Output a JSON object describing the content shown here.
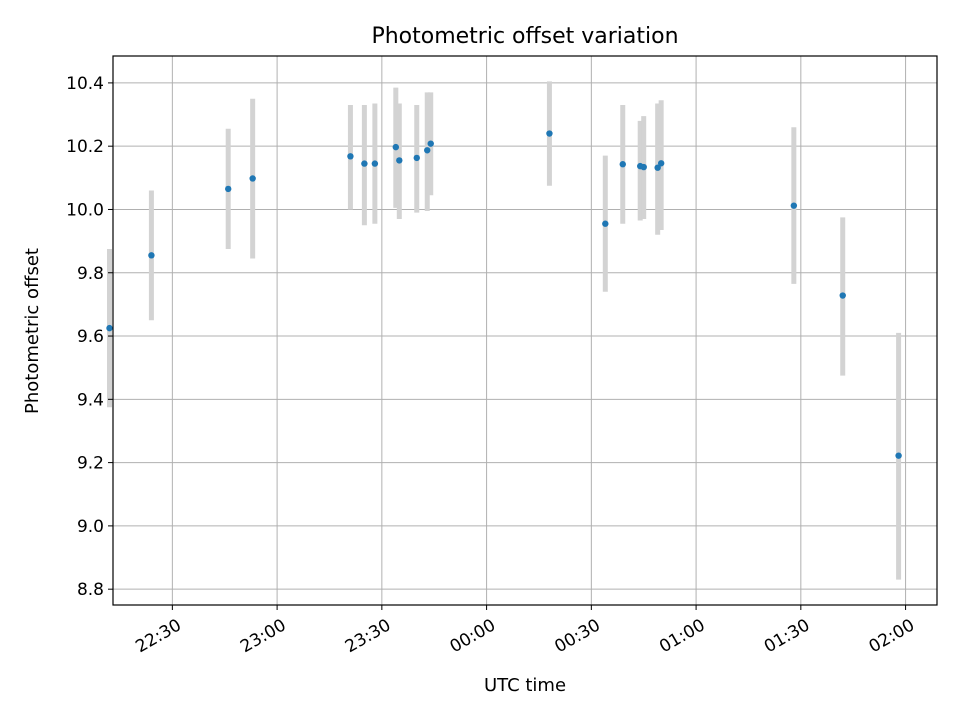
{
  "chart_data": {
    "type": "scatter",
    "title": "Photometric offset variation",
    "xlabel": "UTC time",
    "ylabel": "Photometric offset",
    "grid": true,
    "xlim": [
      "22:13",
      "02:09"
    ],
    "ylim": [
      8.75,
      10.485
    ],
    "x_ticks": [
      "22:30",
      "23:00",
      "23:30",
      "00:00",
      "00:30",
      "01:00",
      "01:30",
      "02:00"
    ],
    "y_ticks": [
      "8.8",
      "9.0",
      "9.2",
      "9.4",
      "9.6",
      "9.8",
      "10.0",
      "10.2",
      "10.4"
    ],
    "colors": {
      "point": "#1f77b4",
      "errorbar": "#d3d3d3",
      "grid": "#b0b0b0"
    },
    "x": [
      "22:12",
      "22:24",
      "22:46",
      "22:53",
      "23:21",
      "23:25",
      "23:28",
      "23:34",
      "23:35",
      "23:40",
      "23:43",
      "23:44",
      "00:18",
      "00:34",
      "00:39",
      "00:44",
      "00:45",
      "00:49",
      "00:50",
      "01:28",
      "01:42",
      "01:58"
    ],
    "y": [
      9.625,
      9.855,
      10.065,
      10.098,
      10.168,
      10.145,
      10.145,
      10.197,
      10.155,
      10.163,
      10.187,
      10.208,
      10.24,
      9.955,
      10.143,
      10.137,
      10.134,
      10.132,
      10.146,
      10.012,
      9.728,
      9.222
    ],
    "err_low": [
      9.375,
      9.65,
      9.875,
      9.845,
      10.0,
      9.95,
      9.955,
      10.005,
      9.97,
      9.99,
      9.995,
      10.045,
      10.075,
      9.74,
      9.955,
      9.965,
      9.97,
      9.92,
      9.935,
      9.765,
      9.475,
      8.83
    ],
    "err_high": [
      9.875,
      10.06,
      10.255,
      10.35,
      10.33,
      10.33,
      10.335,
      10.385,
      10.335,
      10.33,
      10.37,
      10.37,
      10.405,
      10.17,
      10.33,
      10.28,
      10.295,
      10.335,
      10.345,
      10.26,
      9.975,
      9.61
    ]
  }
}
